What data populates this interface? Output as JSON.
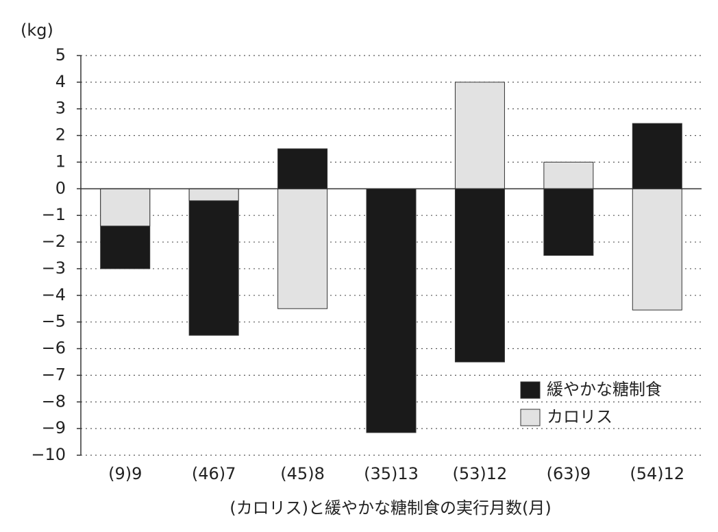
{
  "chart_data": {
    "type": "bar",
    "overlap": true,
    "y_label": "(kg)",
    "x_label": "(カロリス)と緩やかな糖制食の実行月数(月)",
    "categories": [
      "(9)9",
      "(46)7",
      "(45)8",
      "(35)13",
      "(53)12",
      "(63)9",
      "(54)12"
    ],
    "series": [
      {
        "name": "緩やかな糖制食",
        "color": "#1a1a1a",
        "values": [
          -3,
          -5.5,
          1.5,
          -9.15,
          -6.5,
          -2.5,
          2.45
        ]
      },
      {
        "name": "カロリス",
        "color": "#e2e2e2",
        "values": [
          -1.4,
          -0.45,
          -4.5,
          null,
          4,
          1,
          -4.55
        ]
      }
    ],
    "ylim": [
      -10,
      5
    ],
    "yticks": [
      {
        "value": -10,
        "label": "−10"
      },
      {
        "value": -9,
        "label": "−9"
      },
      {
        "value": -8,
        "label": "−8"
      },
      {
        "value": -7,
        "label": "−7"
      },
      {
        "value": -6,
        "label": "−6"
      },
      {
        "value": -5,
        "label": "−5"
      },
      {
        "value": -4,
        "label": "−4"
      },
      {
        "value": -3,
        "label": "−3"
      },
      {
        "value": -2,
        "label": "−2"
      },
      {
        "value": -1,
        "label": "−1"
      },
      0,
      1,
      2,
      3,
      4,
      5
    ],
    "grid": true,
    "legend": "lower right"
  }
}
